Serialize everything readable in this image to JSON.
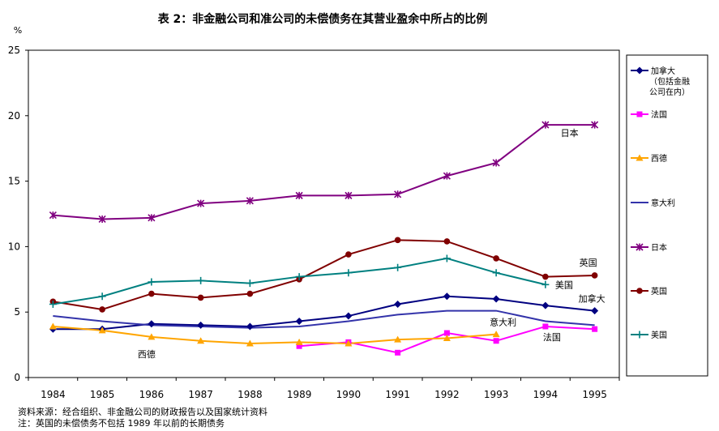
{
  "chart_data": {
    "type": "line",
    "title": "表 2：非金融公司和准公司的未偿债务在其营业盈余中所占的比例",
    "ylabel": "%",
    "xlabel": "",
    "x": [
      "1984",
      "1985",
      "1986",
      "1987",
      "1988",
      "1989",
      "1990",
      "1991",
      "1992",
      "1993",
      "1994",
      "1995"
    ],
    "ylim": [
      0,
      25
    ],
    "yticks": [
      0,
      5,
      10,
      15,
      20,
      25
    ],
    "grid": false,
    "legend_placement": "right",
    "series": [
      {
        "name": "加拿大（包括金融公司在内）",
        "legend_lines": [
          "加拿大",
          "（包括金融",
          "公司在内）"
        ],
        "color": "#000080",
        "marker": "diamond",
        "values": [
          3.7,
          3.7,
          4.1,
          4.0,
          3.9,
          4.3,
          4.7,
          5.6,
          6.2,
          6.0,
          5.5,
          5.1
        ]
      },
      {
        "name": "法国",
        "legend_lines": [
          "法国"
        ],
        "color": "#ff00ff",
        "marker": "square",
        "values": [
          null,
          null,
          null,
          null,
          null,
          2.4,
          2.7,
          1.9,
          3.4,
          2.8,
          3.9,
          3.7
        ]
      },
      {
        "name": "西德",
        "legend_lines": [
          "西德"
        ],
        "color": "#ffa500",
        "marker": "triangle",
        "values": [
          3.9,
          3.6,
          3.1,
          2.8,
          2.6,
          2.7,
          2.6,
          2.9,
          3.0,
          3.3,
          null,
          null
        ]
      },
      {
        "name": "意大利",
        "legend_lines": [
          "意大利"
        ],
        "color": "#3333aa",
        "marker": "none",
        "values": [
          4.7,
          4.3,
          4.0,
          3.9,
          3.8,
          3.9,
          4.3,
          4.8,
          5.1,
          5.1,
          4.3,
          4.0
        ]
      },
      {
        "name": "日本",
        "legend_lines": [
          "日本"
        ],
        "color": "#800080",
        "marker": "x",
        "values": [
          12.4,
          12.1,
          12.2,
          13.3,
          13.5,
          13.9,
          13.9,
          14.0,
          15.4,
          16.4,
          19.3,
          19.3
        ]
      },
      {
        "name": "英国",
        "legend_lines": [
          "英国"
        ],
        "color": "#800000",
        "marker": "circle",
        "values": [
          5.8,
          5.2,
          6.4,
          6.1,
          6.4,
          7.5,
          9.4,
          10.5,
          10.4,
          9.1,
          7.7,
          7.8
        ]
      },
      {
        "name": "美国",
        "legend_lines": [
          "美国"
        ],
        "color": "#008080",
        "marker": "plus",
        "values": [
          5.6,
          6.2,
          7.3,
          7.4,
          7.2,
          7.7,
          8.0,
          8.4,
          9.1,
          8.0,
          7.1,
          null
        ]
      }
    ],
    "annotations": [
      {
        "text": "日本",
        "series": "日本",
        "x": "1995",
        "y": 19.3
      },
      {
        "text": "英国",
        "series": "英国",
        "x": "1995",
        "y": 7.8
      },
      {
        "text": "美国",
        "series": "美国",
        "x": "1994",
        "y": 7.1
      },
      {
        "text": "加拿大",
        "series": "加拿大（包括金融公司在内）",
        "x": "1995",
        "y": 5.1
      },
      {
        "text": "意大利",
        "series": "意大利",
        "x": "1993",
        "y": 5.1
      },
      {
        "text": "法国",
        "series": "法国",
        "x": "1994",
        "y": 3.9
      },
      {
        "text": "西德",
        "series": "西德",
        "x": "1986",
        "y": 3.1
      }
    ]
  },
  "notes": {
    "source": "资料来源：经合组织、非金融公司的财政报告以及国家统计资料",
    "note": "注：英国的未偿债务不包括 1989 年以前的长期债务"
  }
}
